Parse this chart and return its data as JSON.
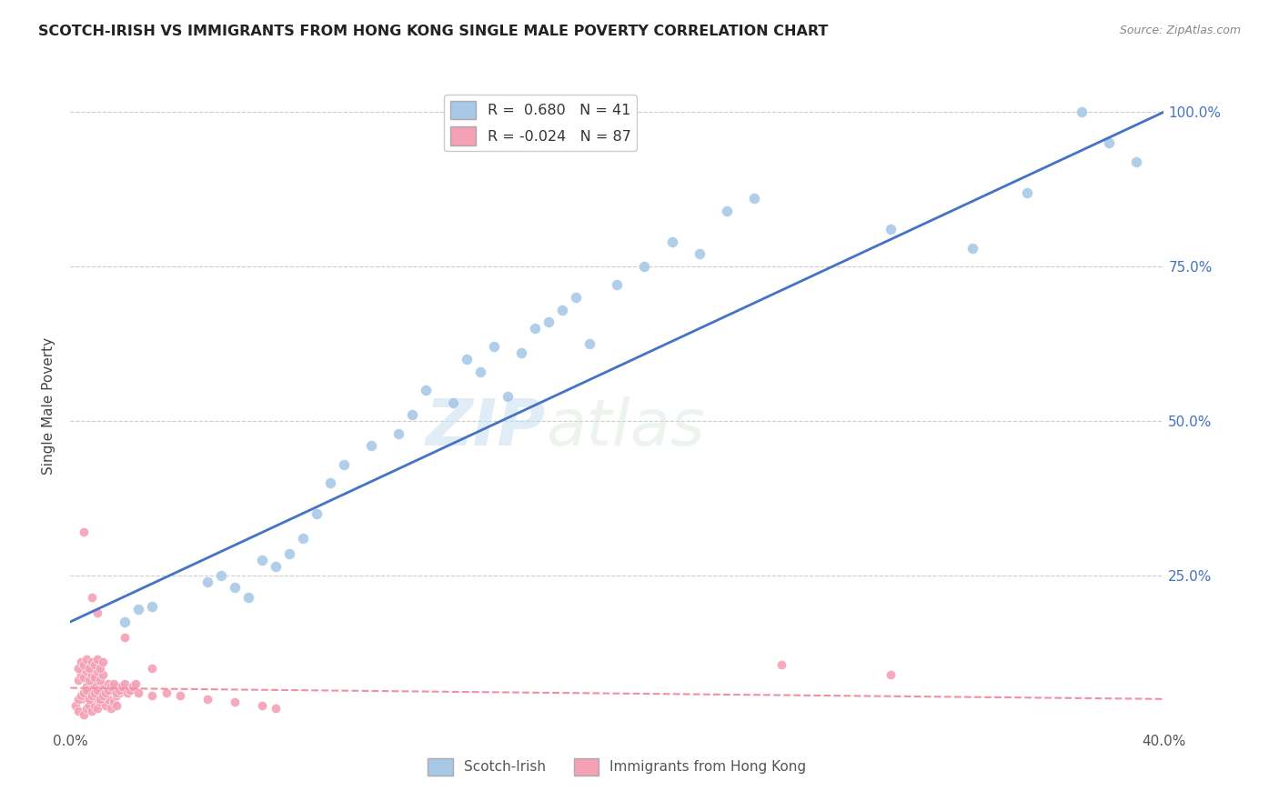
{
  "title": "SCOTCH-IRISH VS IMMIGRANTS FROM HONG KONG SINGLE MALE POVERTY CORRELATION CHART",
  "source": "Source: ZipAtlas.com",
  "ylabel": "Single Male Poverty",
  "xlim": [
    0.0,
    0.4
  ],
  "ylim": [
    0.0,
    1.05
  ],
  "scotch_irish_R": 0.68,
  "scotch_irish_N": 41,
  "hong_kong_R": -0.024,
  "hong_kong_N": 87,
  "scotch_irish_color": "#a8c8e8",
  "hong_kong_color": "#f4a0b5",
  "trendline_scotch_color": "#4472c4",
  "trendline_hk_color": "#f090a0",
  "watermark_zip": "ZIP",
  "watermark_atlas": "atlas",
  "background_color": "#ffffff",
  "grid_color": "#cccccc",
  "si_x": [
    0.02,
    0.025,
    0.03,
    0.05,
    0.055,
    0.06,
    0.065,
    0.07,
    0.075,
    0.08,
    0.085,
    0.09,
    0.095,
    0.1,
    0.11,
    0.12,
    0.125,
    0.13,
    0.14,
    0.145,
    0.15,
    0.155,
    0.16,
    0.165,
    0.17,
    0.175,
    0.18,
    0.185,
    0.19,
    0.2,
    0.21,
    0.22,
    0.23,
    0.24,
    0.25,
    0.3,
    0.33,
    0.35,
    0.37,
    0.38,
    0.39
  ],
  "si_y": [
    0.175,
    0.195,
    0.2,
    0.24,
    0.25,
    0.23,
    0.215,
    0.275,
    0.265,
    0.285,
    0.31,
    0.35,
    0.4,
    0.43,
    0.46,
    0.48,
    0.51,
    0.55,
    0.53,
    0.6,
    0.58,
    0.62,
    0.54,
    0.61,
    0.65,
    0.66,
    0.68,
    0.7,
    0.625,
    0.72,
    0.75,
    0.79,
    0.77,
    0.84,
    0.86,
    0.81,
    0.78,
    0.87,
    1.0,
    0.95,
    0.92
  ],
  "hk_x": [
    0.002,
    0.003,
    0.004,
    0.005,
    0.005,
    0.006,
    0.006,
    0.007,
    0.007,
    0.008,
    0.008,
    0.009,
    0.009,
    0.01,
    0.01,
    0.011,
    0.011,
    0.012,
    0.012,
    0.013,
    0.013,
    0.014,
    0.014,
    0.015,
    0.015,
    0.016,
    0.016,
    0.017,
    0.017,
    0.018,
    0.003,
    0.004,
    0.005,
    0.006,
    0.007,
    0.008,
    0.009,
    0.01,
    0.011,
    0.012,
    0.003,
    0.004,
    0.005,
    0.006,
    0.007,
    0.008,
    0.009,
    0.01,
    0.011,
    0.012,
    0.003,
    0.004,
    0.005,
    0.006,
    0.007,
    0.008,
    0.009,
    0.01,
    0.011,
    0.012,
    0.013,
    0.014,
    0.015,
    0.016,
    0.017,
    0.018,
    0.019,
    0.02,
    0.021,
    0.022,
    0.023,
    0.024,
    0.025,
    0.03,
    0.035,
    0.04,
    0.05,
    0.06,
    0.07,
    0.075,
    0.02,
    0.01,
    0.008,
    0.03,
    0.005,
    0.26,
    0.3
  ],
  "hk_y": [
    0.04,
    0.03,
    0.05,
    0.025,
    0.06,
    0.035,
    0.07,
    0.04,
    0.055,
    0.03,
    0.065,
    0.04,
    0.075,
    0.035,
    0.05,
    0.06,
    0.045,
    0.055,
    0.07,
    0.04,
    0.06,
    0.05,
    0.075,
    0.035,
    0.065,
    0.045,
    0.07,
    0.055,
    0.04,
    0.06,
    0.08,
    0.09,
    0.085,
    0.095,
    0.08,
    0.09,
    0.085,
    0.095,
    0.08,
    0.09,
    0.1,
    0.11,
    0.105,
    0.115,
    0.1,
    0.11,
    0.105,
    0.115,
    0.1,
    0.11,
    0.05,
    0.055,
    0.06,
    0.065,
    0.05,
    0.055,
    0.06,
    0.065,
    0.05,
    0.055,
    0.06,
    0.065,
    0.07,
    0.075,
    0.06,
    0.065,
    0.07,
    0.075,
    0.06,
    0.065,
    0.07,
    0.075,
    0.06,
    0.055,
    0.06,
    0.055,
    0.05,
    0.045,
    0.04,
    0.035,
    0.15,
    0.19,
    0.215,
    0.1,
    0.32,
    0.105,
    0.09
  ]
}
